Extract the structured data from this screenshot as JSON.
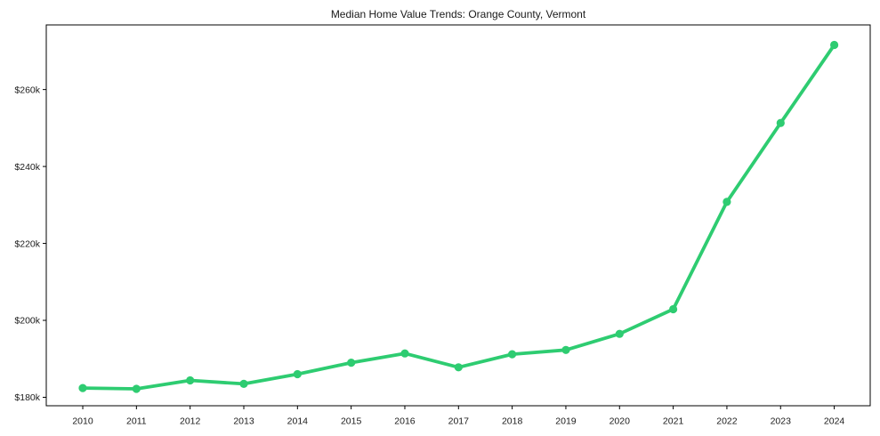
{
  "chart_data": {
    "type": "line",
    "title": "Median Home Value Trends: Orange County, Vermont",
    "xlabel": "",
    "ylabel": "",
    "x": [
      2010,
      2011,
      2012,
      2013,
      2014,
      2015,
      2016,
      2017,
      2018,
      2019,
      2020,
      2021,
      2022,
      2023,
      2024
    ],
    "values": [
      182400,
      182200,
      184400,
      183500,
      186000,
      189000,
      191400,
      187800,
      191200,
      192300,
      196500,
      202900,
      230800,
      251300,
      271600
    ],
    "xticks": {
      "values": [
        2010,
        2011,
        2012,
        2013,
        2014,
        2015,
        2016,
        2017,
        2018,
        2019,
        2020,
        2021,
        2022,
        2023,
        2024
      ],
      "labels": [
        "2010",
        "2011",
        "2012",
        "2013",
        "2014",
        "2015",
        "2016",
        "2017",
        "2018",
        "2019",
        "2020",
        "2021",
        "2022",
        "2023",
        "2024"
      ]
    },
    "yticks": {
      "values": [
        180000,
        200000,
        220000,
        240000,
        260000
      ],
      "labels": [
        "$180k",
        "$200k",
        "$220k",
        "$240k",
        "$260k"
      ]
    },
    "xlim": [
      2009.32,
      2024.67
    ],
    "ylim": [
      177800,
      276800
    ],
    "grid": false,
    "legend": "none",
    "line_color": "#2ecc71",
    "marker_color": "#2ecc71",
    "axis_color": "#000000",
    "text_color": "#1a1a1a"
  }
}
